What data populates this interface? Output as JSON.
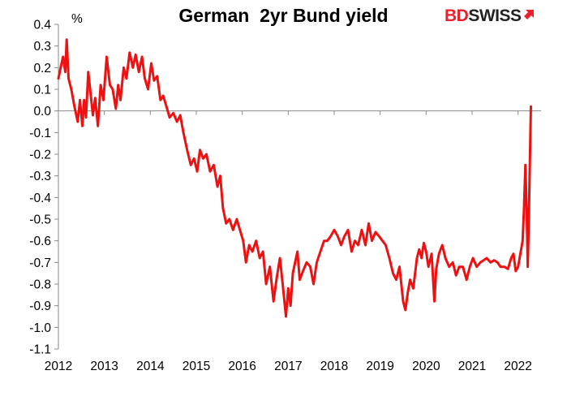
{
  "chart_data": {
    "type": "line",
    "title": "German  2yr Bund yield",
    "ylabel": "%",
    "xlabel": "",
    "ylim": [
      -1.1,
      0.4
    ],
    "xlim": [
      2012,
      2022.5
    ],
    "y_ticks": [
      "0.4",
      "0.3",
      "0.2",
      "0.1",
      "0.0",
      "-0.1",
      "-0.2",
      "-0.3",
      "-0.4",
      "-0.5",
      "-0.6",
      "-0.7",
      "-0.8",
      "-0.9",
      "-1.0",
      "-1.1"
    ],
    "x_ticks": [
      "2012",
      "2013",
      "2014",
      "2015",
      "2016",
      "2017",
      "2018",
      "2019",
      "2020",
      "2021",
      "2022"
    ],
    "grid": false,
    "legend": "none",
    "series": [
      {
        "color": "#ee1111",
        "x": [
          2012.0,
          2012.05,
          2012.1,
          2012.15,
          2012.18,
          2012.22,
          2012.28,
          2012.35,
          2012.42,
          2012.47,
          2012.52,
          2012.56,
          2012.6,
          2012.65,
          2012.7,
          2012.75,
          2012.8,
          2012.86,
          2012.92,
          2012.98,
          2013.05,
          2013.12,
          2013.18,
          2013.25,
          2013.3,
          2013.35,
          2013.42,
          2013.48,
          2013.55,
          2013.62,
          2013.68,
          2013.75,
          2013.82,
          2013.88,
          2013.95,
          2014.02,
          2014.08,
          2014.15,
          2014.22,
          2014.28,
          2014.35,
          2014.42,
          2014.5,
          2014.58,
          2014.65,
          2014.72,
          2014.8,
          2014.88,
          2014.95,
          2015.02,
          2015.08,
          2015.15,
          2015.22,
          2015.3,
          2015.38,
          2015.46,
          2015.52,
          2015.58,
          2015.65,
          2015.72,
          2015.8,
          2015.88,
          2015.95,
          2016.02,
          2016.08,
          2016.15,
          2016.22,
          2016.3,
          2016.38,
          2016.45,
          2016.52,
          2016.6,
          2016.68,
          2016.75,
          2016.82,
          2016.88,
          2016.95,
          2017.0,
          2017.05,
          2017.1,
          2017.15,
          2017.2,
          2017.25,
          2017.32,
          2017.4,
          2017.48,
          2017.55,
          2017.62,
          2017.7,
          2017.78,
          2017.85,
          2017.92,
          2018.0,
          2018.08,
          2018.15,
          2018.22,
          2018.3,
          2018.38,
          2018.45,
          2018.52,
          2018.6,
          2018.68,
          2018.75,
          2018.82,
          2018.9,
          2018.98,
          2019.05,
          2019.12,
          2019.2,
          2019.28,
          2019.35,
          2019.42,
          2019.5,
          2019.55,
          2019.6,
          2019.65,
          2019.72,
          2019.8,
          2019.85,
          2019.9,
          2019.95,
          2020.0,
          2020.05,
          2020.12,
          2020.18,
          2020.22,
          2020.28,
          2020.35,
          2020.42,
          2020.5,
          2020.58,
          2020.65,
          2020.72,
          2020.8,
          2020.88,
          2020.95,
          2021.02,
          2021.1,
          2021.18,
          2021.25,
          2021.32,
          2021.4,
          2021.48,
          2021.55,
          2021.62,
          2021.7,
          2021.78,
          2021.85,
          2021.9,
          2021.95,
          2022.0,
          2022.05,
          2022.1,
          2022.13,
          2022.16,
          2022.19,
          2022.21,
          2022.23,
          2022.25,
          2022.28
        ],
        "y": [
          0.15,
          0.2,
          0.25,
          0.18,
          0.33,
          0.15,
          0.1,
          0.02,
          -0.05,
          0.05,
          -0.07,
          0.05,
          -0.03,
          0.18,
          0.08,
          -0.02,
          0.06,
          -0.07,
          0.12,
          0.05,
          0.25,
          0.12,
          0.1,
          0.01,
          0.12,
          0.05,
          0.2,
          0.15,
          0.27,
          0.2,
          0.26,
          0.18,
          0.25,
          0.15,
          0.1,
          0.22,
          0.14,
          0.16,
          0.05,
          0.07,
          0.02,
          -0.03,
          -0.01,
          -0.05,
          -0.02,
          -0.1,
          -0.18,
          -0.25,
          -0.22,
          -0.28,
          -0.18,
          -0.22,
          -0.2,
          -0.28,
          -0.25,
          -0.35,
          -0.3,
          -0.45,
          -0.52,
          -0.5,
          -0.55,
          -0.5,
          -0.55,
          -0.6,
          -0.7,
          -0.62,
          -0.65,
          -0.6,
          -0.68,
          -0.65,
          -0.8,
          -0.72,
          -0.88,
          -0.77,
          -0.68,
          -0.8,
          -0.95,
          -0.82,
          -0.9,
          -0.75,
          -0.7,
          -0.65,
          -0.78,
          -0.74,
          -0.7,
          -0.72,
          -0.8,
          -0.7,
          -0.65,
          -0.6,
          -0.6,
          -0.58,
          -0.55,
          -0.58,
          -0.62,
          -0.58,
          -0.55,
          -0.65,
          -0.6,
          -0.62,
          -0.55,
          -0.62,
          -0.52,
          -0.6,
          -0.56,
          -0.58,
          -0.6,
          -0.62,
          -0.68,
          -0.75,
          -0.78,
          -0.72,
          -0.88,
          -0.92,
          -0.84,
          -0.78,
          -0.82,
          -0.68,
          -0.64,
          -0.68,
          -0.61,
          -0.65,
          -0.72,
          -0.66,
          -0.88,
          -0.73,
          -0.66,
          -0.62,
          -0.68,
          -0.72,
          -0.7,
          -0.76,
          -0.72,
          -0.72,
          -0.78,
          -0.72,
          -0.68,
          -0.72,
          -0.7,
          -0.69,
          -0.68,
          -0.7,
          -0.69,
          -0.7,
          -0.72,
          -0.72,
          -0.73,
          -0.68,
          -0.66,
          -0.74,
          -0.72,
          -0.66,
          -0.6,
          -0.45,
          -0.25,
          -0.48,
          -0.72,
          -0.55,
          -0.32,
          0.02
        ]
      }
    ]
  },
  "logo": {
    "text_bd": "BD",
    "text_swiss": "SWISS"
  }
}
